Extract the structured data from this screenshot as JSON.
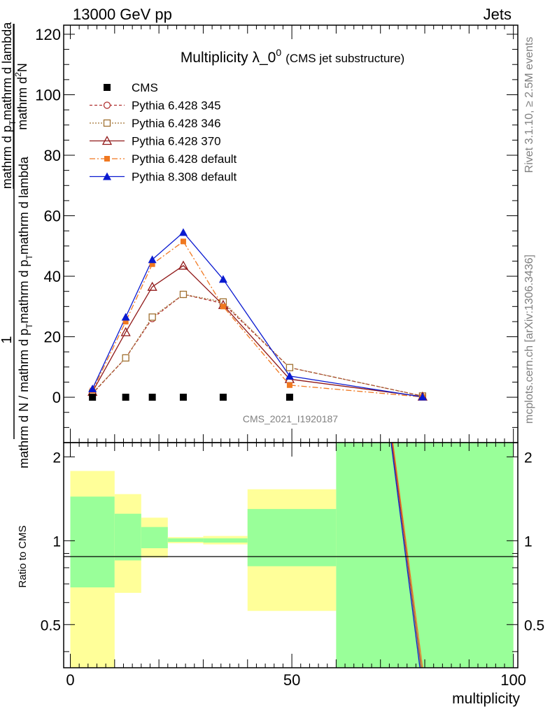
{
  "header": {
    "left": "13000 GeV pp",
    "right": "Jets"
  },
  "side": {
    "rivet": "Rivet 3.1.10, ≥ 2.5M events",
    "mcplots": "mcplots.cern.ch [arXiv:1306.3436]"
  },
  "chart_data": [
    {
      "type": "line",
      "title": "Multiplicity λ_0",
      "title_sup": "0",
      "subtitle": "(CMS jet substructure)",
      "watermark": "CMS_2021_I1920187",
      "ylabel_top": "mathrm d²N",
      "ylabel_top_super": "2",
      "ylabel_lead": "1",
      "ylabel_full": "mathrm d N / mathrm d p_T mathrm d p_T mathrm d lambda",
      "ylabel_den1": "mathrm d N / mathrm d p",
      "ylabel_den_sub1": "T",
      "ylabel_den2": "mathrm d p",
      "ylabel_den_sub2": "T",
      "ylabel_den3": "mathrm d lambda",
      "ylabel_den_prefix": "mathrm d p",
      "ylabel_den_middle": "mathrm d lambda",
      "ylim": [
        -15,
        123
      ],
      "yticks": [
        "0",
        "20",
        "40",
        "60",
        "80",
        "100",
        "120"
      ],
      "xlim": [
        -1.5,
        101
      ],
      "legend_position": "top-left",
      "cms": {
        "name": "CMS",
        "x": [
          5,
          12.5,
          18.5,
          25.5,
          34.5,
          49.5
        ],
        "y": [
          0,
          0,
          0,
          0,
          0,
          0
        ]
      },
      "series": [
        {
          "name": "Pythia 6.428 345",
          "color": "#b03030",
          "dash": "4,3",
          "marker": "circle-open",
          "x": [
            5,
            12.5,
            18.5,
            25.5,
            34.5,
            49.5,
            79.5
          ],
          "y": [
            1.2,
            13,
            26,
            34,
            31,
            9.8,
            0.4
          ]
        },
        {
          "name": "Pythia 6.428 346",
          "color": "#a07030",
          "dash": "2,2",
          "marker": "square-open",
          "x": [
            5,
            12.5,
            18.5,
            25.5,
            34.5,
            49.5,
            79.5
          ],
          "y": [
            1.4,
            13,
            26.5,
            34,
            31.5,
            9.8,
            0.4
          ]
        },
        {
          "name": "Pythia 6.428 370",
          "color": "#901818",
          "dash": "",
          "marker": "triangle-open",
          "x": [
            5,
            12.5,
            18.5,
            25.5,
            34.5,
            49.5,
            79.5
          ],
          "y": [
            1.8,
            21.5,
            36.5,
            43.5,
            30.5,
            6,
            0.2
          ]
        },
        {
          "name": "Pythia 6.428 default",
          "color": "#f07820",
          "dash": "8,3,2,3",
          "marker": "square-filled",
          "x": [
            5,
            12.5,
            18.5,
            25.5,
            34.5,
            49.5,
            79.5
          ],
          "y": [
            2.2,
            25,
            44,
            51.5,
            30,
            4,
            0.1
          ]
        },
        {
          "name": "Pythia 8.308 default",
          "color": "#0a1ad0",
          "dash": "",
          "marker": "triangle-filled",
          "x": [
            5,
            12.5,
            18.5,
            25.5,
            34.5,
            49.5,
            79.5
          ],
          "y": [
            2.8,
            26.5,
            45.5,
            54.5,
            39,
            7,
            0.1
          ]
        }
      ]
    },
    {
      "type": "area",
      "ylabel": "Ratio to CMS",
      "xlabel": "multiplicity",
      "ylim": [
        0.35,
        2.25
      ],
      "yticks": [
        "0.5",
        "1",
        "2"
      ],
      "xticks": [
        "0",
        "50",
        "100"
      ],
      "xlim": [
        -1.5,
        101
      ],
      "bands": [
        {
          "x0": 0,
          "x1": 10,
          "yellow": [
            0.35,
            1.78
          ],
          "green": [
            0.68,
            1.44
          ]
        },
        {
          "x0": 10,
          "x1": 16,
          "yellow": [
            0.65,
            1.47
          ],
          "green": [
            0.85,
            1.25
          ]
        },
        {
          "x0": 16,
          "x1": 22,
          "yellow": [
            0.87,
            1.21
          ],
          "green": [
            0.94,
            1.12
          ]
        },
        {
          "x0": 22,
          "x1": 30,
          "yellow": [
            0.98,
            1.03
          ],
          "green": [
            0.99,
            1.02
          ]
        },
        {
          "x0": 30,
          "x1": 40,
          "yellow": [
            0.97,
            1.04
          ],
          "green": [
            0.985,
            1.02
          ]
        },
        {
          "x0": 40,
          "x1": 60,
          "yellow": [
            0.56,
            1.53
          ],
          "green": [
            0.81,
            1.3
          ]
        },
        {
          "x0": 60,
          "x1": 100,
          "yellow": [
            0.35,
            2.25
          ],
          "green": [
            0.35,
            2.25
          ]
        }
      ],
      "ratio_lines": [
        {
          "color": "#f07820",
          "x": [
            72.8,
            79.5
          ],
          "y": [
            2.25,
            0.35
          ]
        },
        {
          "color": "#b03030",
          "x": [
            72.6,
            79.2
          ],
          "y": [
            2.25,
            0.35
          ]
        },
        {
          "color": "#0a1ad0",
          "x": [
            72.4,
            78.9
          ],
          "y": [
            2.25,
            0.35
          ]
        }
      ]
    }
  ]
}
